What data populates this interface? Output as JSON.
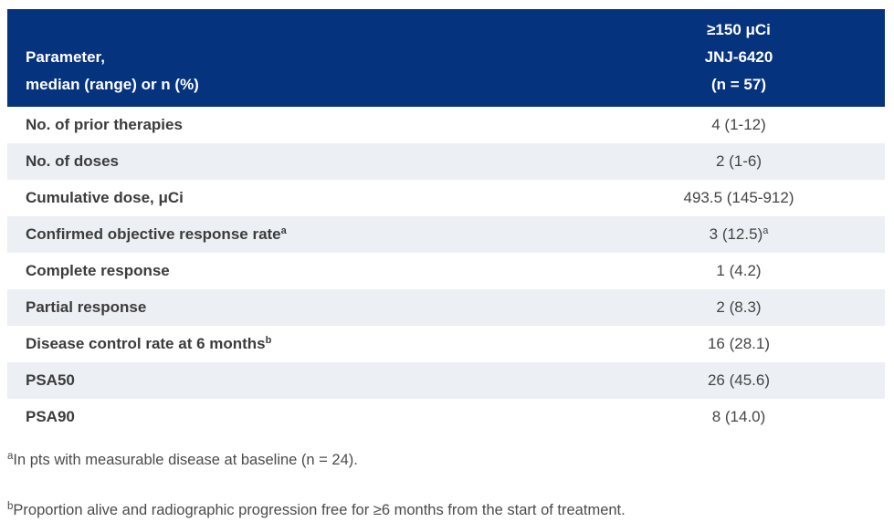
{
  "colors": {
    "header_bg": "#06337E",
    "header_text": "#FFFFFF",
    "row_stripe_bg": "#ECEFF3",
    "row_bg": "#FFFFFF",
    "label_text": "#3C3C3C",
    "value_text": "#454545",
    "footnote_text": "#4B4B4B"
  },
  "table": {
    "header": {
      "param_lines": [
        "Parameter,",
        "median (range) or n (%)"
      ],
      "value_lines": [
        "≥150 μCi",
        "JNJ-6420",
        "(n = 57)"
      ]
    },
    "rows": [
      {
        "label": "No. of prior therapies",
        "value": "4 (1-12)"
      },
      {
        "label": "No. of doses",
        "value": "2 (1-6)"
      },
      {
        "label": "Cumulative dose, μCi",
        "value": "493.5 (145-912)"
      },
      {
        "label": "Confirmed objective response rate",
        "label_sup": "a",
        "value": "3 (12.5)",
        "value_sup": "a"
      },
      {
        "label": "Complete response",
        "value": "1 (4.2)"
      },
      {
        "label": "Partial response",
        "value": "2 (8.3)"
      },
      {
        "label": "Disease control rate at 6 months",
        "label_sup": "b",
        "value": "16 (28.1)"
      },
      {
        "label": "PSA50",
        "value": "26 (45.6)"
      },
      {
        "label": "PSA90",
        "value": "8 (14.0)"
      }
    ]
  },
  "footnotes": [
    {
      "sup": "a",
      "text": "In pts with measurable disease at baseline (n = 24)."
    },
    {
      "sup": "b",
      "text": "Proportion alive and radiographic progression free for ≥6 months from the start of treatment."
    }
  ]
}
